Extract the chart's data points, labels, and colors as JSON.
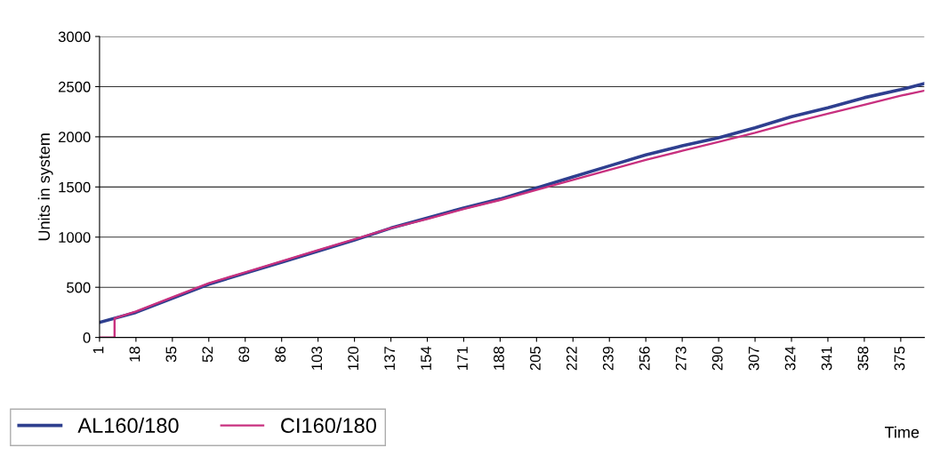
{
  "chart_data": {
    "type": "line",
    "xlabel": "Time",
    "ylabel": "Units in system",
    "xlim": [
      1,
      386
    ],
    "xticks": [
      1,
      18,
      35,
      52,
      69,
      86,
      103,
      120,
      137,
      154,
      171,
      188,
      205,
      222,
      239,
      256,
      273,
      290,
      307,
      324,
      341,
      358,
      375
    ],
    "ylim": [
      0,
      3000
    ],
    "yticks": [
      0,
      500,
      1000,
      1500,
      2000,
      2500,
      3000
    ],
    "grid": "y",
    "legend": "bottom left",
    "line_style": "solid",
    "marker": "none",
    "series": [
      {
        "name": "AL160/180",
        "color": "#2e3f8f",
        "x": [
          1,
          18,
          35,
          52,
          69,
          86,
          103,
          120,
          137,
          154,
          171,
          188,
          205,
          222,
          239,
          256,
          273,
          290,
          307,
          324,
          341,
          358,
          375,
          386
        ],
        "values": [
          150,
          250,
          390,
          530,
          640,
          750,
          860,
          970,
          1090,
          1190,
          1290,
          1380,
          1490,
          1600,
          1710,
          1820,
          1910,
          1990,
          2090,
          2200,
          2290,
          2390,
          2470,
          2530
        ]
      },
      {
        "name": "CI160/180",
        "color": "#c8307f",
        "x": [
          1,
          8,
          8,
          18,
          35,
          52,
          69,
          86,
          103,
          120,
          137,
          154,
          171,
          188,
          205,
          222,
          239,
          256,
          273,
          290,
          307,
          324,
          341,
          358,
          375,
          386
        ],
        "values": [
          0,
          0,
          190,
          260,
          400,
          540,
          650,
          760,
          870,
          980,
          1090,
          1180,
          1280,
          1370,
          1470,
          1570,
          1670,
          1770,
          1860,
          1950,
          2040,
          2140,
          2230,
          2320,
          2410,
          2460
        ]
      }
    ]
  }
}
